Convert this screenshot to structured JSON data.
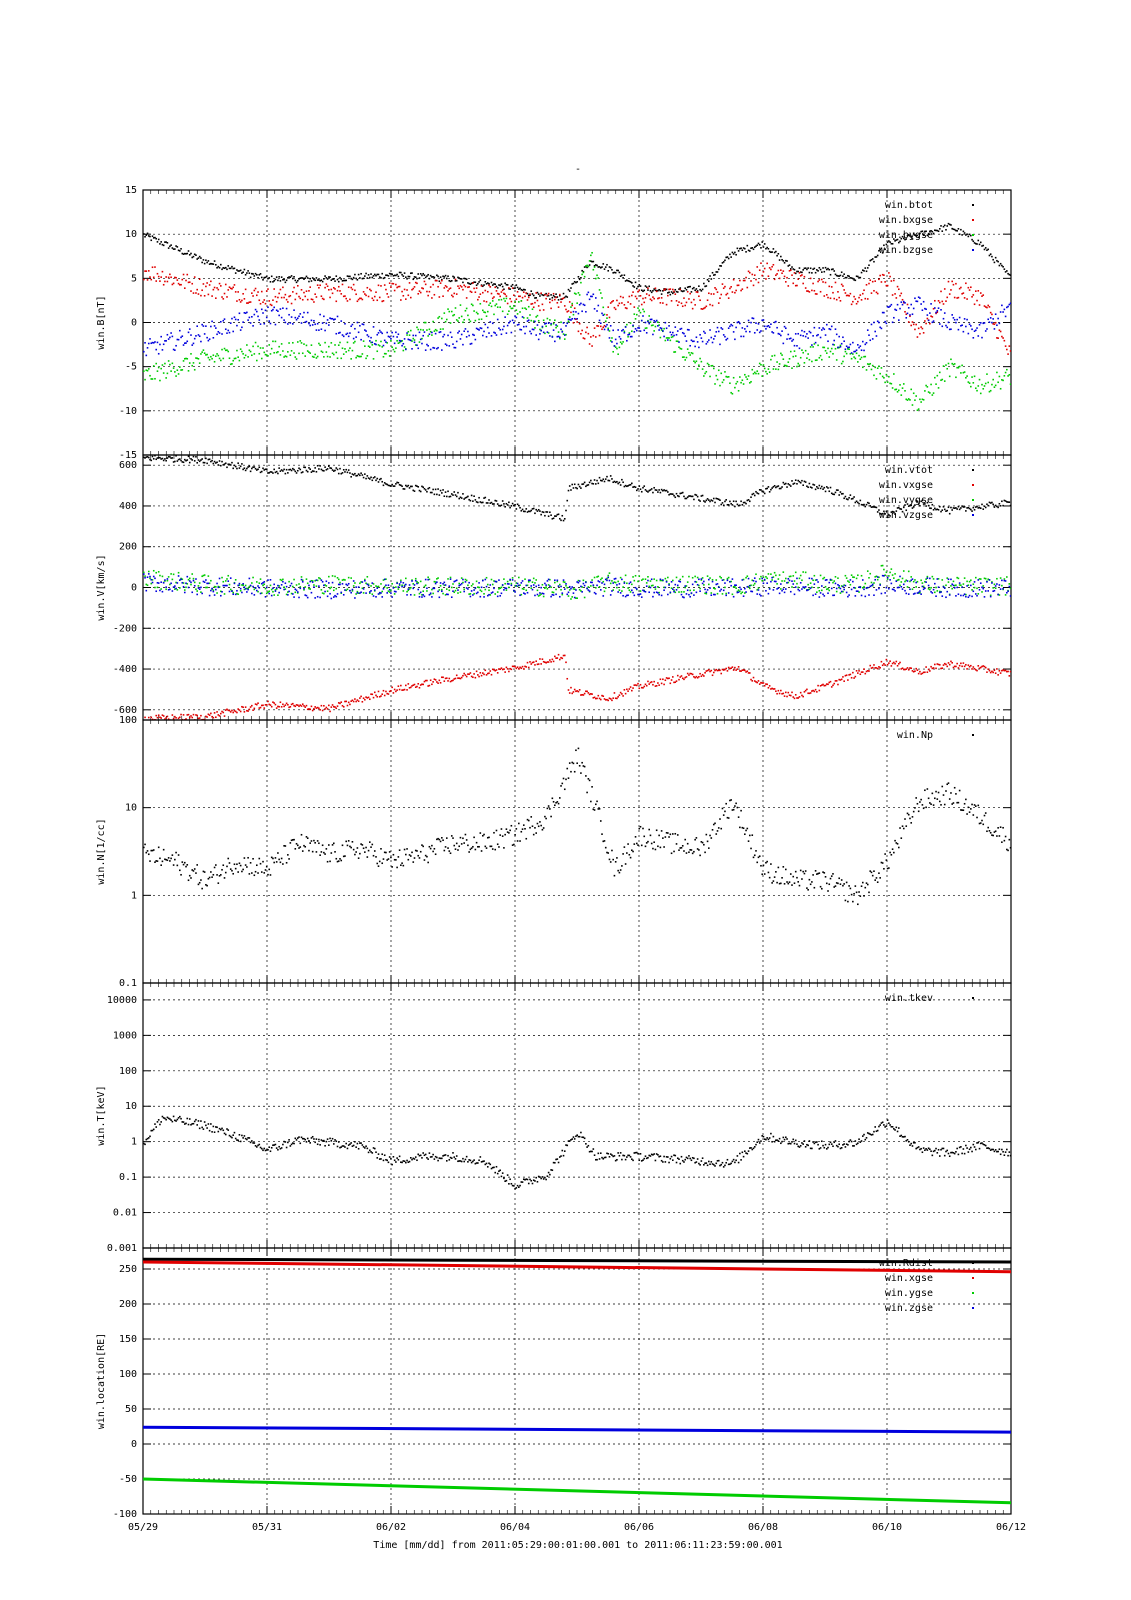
{
  "figure": {
    "title": "-",
    "xlabel": "Time [mm/dd]  from 2011:05:29:00:01:00.001  to  2011:06:11:23:59:00.001"
  },
  "colors": {
    "black": "#000000",
    "red": "#e00000",
    "green": "#00cc00",
    "blue": "#0000dd"
  },
  "chart_data": [
    {
      "type": "scatter",
      "ylabel": "win.B[nT]",
      "ylim": [
        -15,
        15
      ],
      "log": false,
      "yticks": [
        -15,
        -10,
        -5,
        0,
        5,
        10,
        15
      ],
      "ytick_labels": [
        "-15",
        "-10",
        "-5",
        "0",
        "5",
        "10",
        "15"
      ],
      "x": [
        "05/29",
        "05/30",
        "05/31",
        "06/01",
        "06/02",
        "06/03",
        "06/04",
        "06/04.4",
        "06/04.8",
        "06/05.2",
        "06/05.6",
        "06/06",
        "06/06.5",
        "06/07",
        "06/07.5",
        "06/08",
        "06/08.5",
        "06/09",
        "06/09.5",
        "06/10",
        "06/10.5",
        "06/11",
        "06/11.5",
        "06/12"
      ],
      "series": [
        {
          "name": "win.btot",
          "color": "black",
          "values": [
            10,
            7,
            5,
            5,
            5.5,
            5,
            4,
            3,
            3,
            7,
            6,
            4,
            3.5,
            4,
            8,
            9,
            6,
            6,
            5,
            9,
            10,
            11,
            9,
            5
          ]
        },
        {
          "name": "win.bxgse",
          "color": "red",
          "values": [
            6,
            4,
            3,
            3.5,
            3.5,
            4,
            3,
            2.5,
            2.5,
            -2,
            2,
            3,
            3,
            2.5,
            4,
            6,
            5,
            4,
            3,
            5,
            -1,
            4,
            3,
            -4
          ]
        },
        {
          "name": "win.bygse",
          "color": "green",
          "values": [
            -6,
            -4,
            -3,
            -3,
            -3,
            1,
            2,
            0,
            -1,
            8,
            -3,
            1,
            -2,
            -5,
            -7,
            -5,
            -4,
            -3,
            -4,
            -6,
            -9,
            -5,
            -7,
            -6
          ]
        },
        {
          "name": "win.bzgse",
          "color": "blue",
          "values": [
            -3,
            -1,
            1,
            0,
            -2,
            -2,
            0,
            -1,
            -1,
            3,
            -2,
            0,
            -1,
            -2,
            -1,
            0,
            -2,
            -1,
            -3,
            1,
            2,
            0,
            -1,
            2
          ]
        }
      ]
    },
    {
      "type": "scatter",
      "ylabel": "win.V[km/s]",
      "ylim": [
        -650,
        650
      ],
      "log": false,
      "yticks": [
        -600,
        -400,
        -200,
        0,
        200,
        400,
        600
      ],
      "ytick_labels": [
        "-600",
        "-400",
        "-200",
        "0",
        "200",
        "400",
        "600"
      ],
      "x": [
        "05/29",
        "05/30",
        "05/31",
        "06/01",
        "06/02",
        "06/03",
        "06/04",
        "06/04.8",
        "06/04.85",
        "06/05.5",
        "06/06",
        "06/07",
        "06/07.6",
        "06/08",
        "06/08.5",
        "06/09",
        "06/09.5",
        "06/10",
        "06/10.5",
        "06/11",
        "06/12"
      ],
      "series": [
        {
          "name": "win.vtot",
          "color": "black",
          "values": [
            640,
            630,
            570,
            590,
            510,
            460,
            400,
            340,
            490,
            540,
            490,
            440,
            410,
            480,
            520,
            490,
            430,
            360,
            420,
            380,
            420
          ]
        },
        {
          "name": "win.vxgse",
          "color": "red",
          "values": [
            -640,
            -630,
            -570,
            -590,
            -500,
            -440,
            -390,
            -330,
            -500,
            -540,
            -480,
            -420,
            -390,
            -480,
            -530,
            -480,
            -420,
            -360,
            -410,
            -370,
            -420
          ]
        },
        {
          "name": "win.vygse",
          "color": "green",
          "values": [
            50,
            20,
            10,
            20,
            10,
            10,
            10,
            0,
            -20,
            30,
            20,
            20,
            10,
            40,
            40,
            20,
            20,
            80,
            20,
            10,
            10
          ]
        },
        {
          "name": "win.vzgse",
          "color": "blue",
          "values": [
            30,
            10,
            0,
            -5,
            0,
            0,
            5,
            0,
            -10,
            10,
            0,
            0,
            0,
            10,
            10,
            0,
            0,
            20,
            10,
            0,
            0
          ]
        }
      ]
    },
    {
      "type": "scatter",
      "ylabel": "win.N[1/cc]",
      "ylim": [
        0.1,
        100
      ],
      "log": true,
      "yticks": [
        0.1,
        1,
        10,
        100
      ],
      "ytick_labels": [
        "0.1",
        "1",
        "10",
        "100"
      ],
      "x": [
        "05/29",
        "05/29.5",
        "05/30",
        "05/30.5",
        "05/31",
        "05/31.5",
        "06/01",
        "06/01.5",
        "06/02",
        "06/02.5",
        "06/03",
        "06/03.5",
        "06/04",
        "06/04.5",
        "06/05",
        "06/05.3",
        "06/05.6",
        "06/06",
        "06/06.5",
        "06/07",
        "06/07.5",
        "06/08",
        "06/08.5",
        "06/09",
        "06/09.5",
        "06/10",
        "06/10.5",
        "06/11",
        "06/11.5",
        "06/12"
      ],
      "series": [
        {
          "name": "win.Np",
          "color": "black",
          "values": [
            3,
            2.5,
            1.5,
            2.5,
            2,
            4,
            3,
            3.5,
            2.5,
            3,
            4,
            4,
            5,
            8,
            40,
            10,
            2,
            5,
            4,
            3.5,
            12,
            2,
            1.5,
            1.5,
            1,
            2.5,
            12,
            15,
            8,
            4
          ]
        }
      ]
    },
    {
      "type": "scatter",
      "ylabel": "win.T[keV]",
      "ylim": [
        0.001,
        30000
      ],
      "log": true,
      "yticks": [
        0.001,
        0.01,
        0.1,
        1,
        10,
        100,
        1000,
        10000
      ],
      "ytick_labels": [
        "0.001",
        "0.01",
        "0.1",
        "1",
        "10",
        "100",
        "1000",
        "10000"
      ],
      "x": [
        "05/29",
        "05/29.3",
        "05/30",
        "05/30.5",
        "05/31",
        "05/31.5",
        "06/01",
        "06/01.5",
        "06/02",
        "06/02.5",
        "06/03",
        "06/03.5",
        "06/04",
        "06/04.5",
        "06/05",
        "06/05.3",
        "06/06",
        "06/06.5",
        "06/07",
        "06/07.5",
        "06/08",
        "06/08.5",
        "06/09",
        "06/09.5",
        "06/10",
        "06/10.5",
        "06/11",
        "06/11.5",
        "06/12"
      ],
      "series": [
        {
          "name": "win.tkev",
          "color": "black",
          "values": [
            1,
            5,
            3,
            1.5,
            0.6,
            1.2,
            1,
            0.8,
            0.3,
            0.4,
            0.4,
            0.3,
            0.06,
            0.12,
            2,
            0.4,
            0.4,
            0.35,
            0.3,
            0.25,
            1.5,
            1,
            0.8,
            1,
            4,
            0.6,
            0.5,
            0.8,
            0.5
          ]
        }
      ]
    },
    {
      "type": "line",
      "ylabel": "win.location[RE]",
      "ylim": [
        -100,
        280
      ],
      "log": false,
      "yticks": [
        -100,
        -50,
        0,
        50,
        100,
        150,
        200,
        250
      ],
      "ytick_labels": [
        "-100",
        "-50",
        "0",
        "50",
        "100",
        "150",
        "200",
        "250"
      ],
      "x": [
        "05/29",
        "06/12"
      ],
      "series": [
        {
          "name": "win.Rdist",
          "color": "black",
          "values": [
            264,
            260
          ]
        },
        {
          "name": "win.xgse",
          "color": "red",
          "values": [
            260,
            246
          ]
        },
        {
          "name": "win.ygse",
          "color": "green",
          "values": [
            -50,
            -84
          ]
        },
        {
          "name": "win.zgse",
          "color": "blue",
          "values": [
            24,
            17
          ]
        }
      ]
    }
  ],
  "x_axis": {
    "ticks": [
      "05/29",
      "05/31",
      "06/02",
      "06/04",
      "06/06",
      "06/08",
      "06/10",
      "06/12"
    ],
    "day_offsets": [
      0,
      2,
      4,
      6,
      8,
      10,
      12,
      14
    ]
  }
}
